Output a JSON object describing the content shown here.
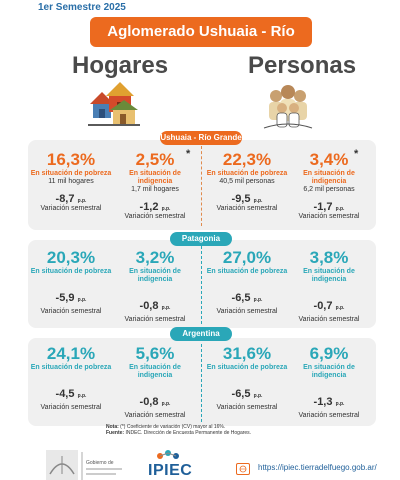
{
  "header": {
    "period": "1er Semestre 2025",
    "title": "Aglomerado Ushuaia - Río Grande",
    "hogares_heading": "Hogares",
    "personas_heading": "Personas"
  },
  "sections": [
    {
      "name": "Ushuaia - Río Grande",
      "color": "#ec6a1f",
      "cells": [
        {
          "value": "16,3%",
          "label": "En situación de pobreza",
          "sub": "11  mil hogares",
          "var": "-8,7",
          "var_unit": "p.p.",
          "var_label": "Variación semestral"
        },
        {
          "value": "2,5%",
          "label": "En situación de indigencia",
          "sub": "1,7  mil hogares",
          "var": "-1,2",
          "var_unit": "p.p.",
          "var_label": "Variación semestral",
          "star": "*"
        },
        {
          "value": "22,3%",
          "label": "En situación de pobreza",
          "sub": "40,5 mil personas",
          "var": "-9,5",
          "var_unit": "p.p.",
          "var_label": "Variación semestral"
        },
        {
          "value": "3,4%",
          "label": "En situación de indigencia",
          "sub": "6,2  mil personas",
          "var": "-1,7",
          "var_unit": "p.p.",
          "var_label": "Variación semestral",
          "star": "*"
        }
      ]
    },
    {
      "name": "Patagonia",
      "color": "#2aa7b8",
      "cells": [
        {
          "value": "20,3%",
          "label": "En situación de pobreza",
          "var": "-5,9",
          "var_unit": "p.p.",
          "var_label": "Variación semestral"
        },
        {
          "value": "3,2%",
          "label": "En situación de indigencia",
          "var": "-0,8",
          "var_unit": "p.p.",
          "var_label": "Variación semestral"
        },
        {
          "value": "27,0%",
          "label": "En situación de pobreza",
          "var": "-6,5",
          "var_unit": "p.p.",
          "var_label": "Variación semestral"
        },
        {
          "value": "3,8%",
          "label": "En situación de indigencia",
          "var": "-0,7",
          "var_unit": "p.p.",
          "var_label": "Variación semestral"
        }
      ]
    },
    {
      "name": "Argentina",
      "color": "#2aa7b8",
      "cells": [
        {
          "value": "24,1%",
          "label": "En situación de pobreza",
          "var": "-4,5",
          "var_unit": "p.p.",
          "var_label": "Variación semestral"
        },
        {
          "value": "5,6%",
          "label": "En situación de indigencia",
          "var": "-0,8",
          "var_unit": "p.p.",
          "var_label": "Variación semestral"
        },
        {
          "value": "31,6%",
          "label": "En situación de pobreza",
          "var": "-6,5",
          "var_unit": "p.p.",
          "var_label": "Variación semestral"
        },
        {
          "value": "6,9%",
          "label": "En situación de indigencia",
          "var": "-1,3",
          "var_unit": "p.p.",
          "var_label": "Variación semestral"
        }
      ]
    }
  ],
  "notes": {
    "note_label": "Nota:",
    "note_text": "(*) Coeficiente de variación (CV) mayor al 16%.",
    "source_label": "Fuente:",
    "source_text": "INDEC. Dirección de Encuesta Permanente de Hogares."
  },
  "footer": {
    "org_logo_text": "IPIEC",
    "gov_logo_text": "Gobierno de",
    "website": "https://ipiec.tierradelfuego.gob.ar/",
    "icons": [
      "houses-icon",
      "people-icon",
      "globe-icon"
    ]
  }
}
